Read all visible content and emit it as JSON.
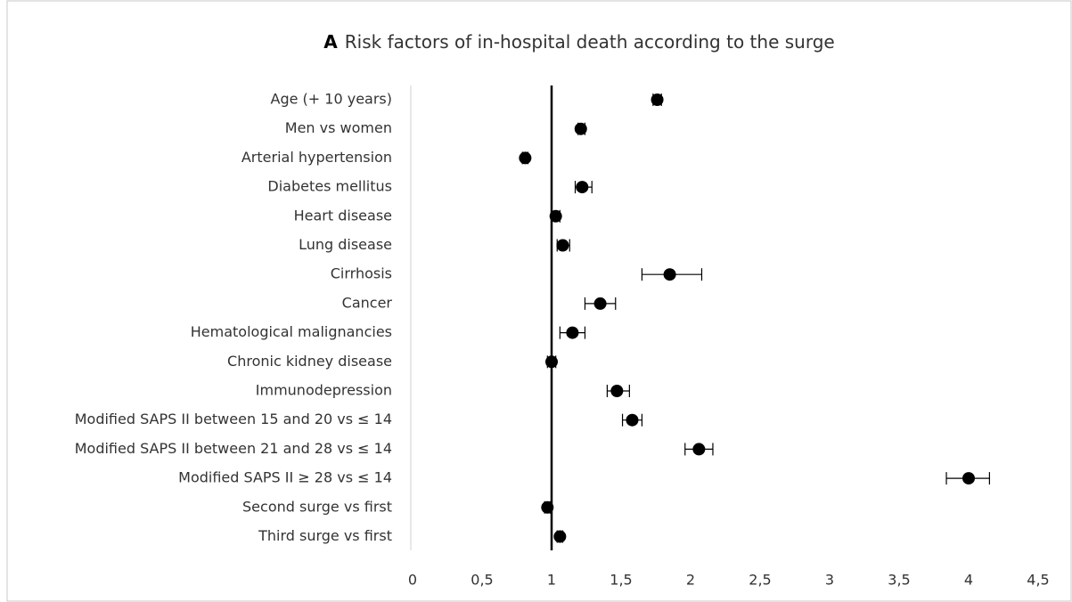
{
  "chart_data": {
    "type": "forest",
    "panel_label": "A",
    "title": "Risk factors of in-hospital death according to the surge",
    "categories": [
      "Age (+ 10 years)",
      "Men vs women",
      "Arterial hypertension",
      "Diabetes mellitus",
      "Heart disease",
      "Lung disease",
      "Cirrhosis",
      "Cancer",
      "Hematological malignancies",
      "Chronic kidney disease",
      "Immunodepression",
      "Modified SAPS II between 15 and 20 vs ≤ 14",
      "Modified SAPS II between 21 and 28 vs ≤ 14",
      "Modified SAPS II ≥ 28 vs ≤ 14",
      "Second surge vs first",
      "Third surge vs first"
    ],
    "values": [
      1.76,
      1.21,
      0.81,
      1.22,
      1.03,
      1.08,
      1.85,
      1.35,
      1.15,
      1.0,
      1.47,
      1.58,
      2.06,
      4.0,
      0.97,
      1.06
    ],
    "lower": [
      1.73,
      1.19,
      0.79,
      1.17,
      1.0,
      1.04,
      1.65,
      1.24,
      1.06,
      0.97,
      1.4,
      1.51,
      1.96,
      3.84,
      0.95,
      1.04
    ],
    "upper": [
      1.79,
      1.24,
      0.83,
      1.29,
      1.06,
      1.13,
      2.08,
      1.46,
      1.24,
      1.03,
      1.56,
      1.65,
      2.16,
      4.15,
      0.99,
      1.08
    ],
    "color": "#000000",
    "reference": 1,
    "xlim": [
      0,
      4.5
    ],
    "xticks": [
      0,
      {
        "value": 0.5,
        "label": "0,5"
      },
      1,
      {
        "value": 1.5,
        "label": "1,5"
      },
      2,
      {
        "value": 2.5,
        "label": "2,5"
      },
      3,
      {
        "value": 3.5,
        "label": "3,5"
      },
      4,
      {
        "value": 4.5,
        "label": "4,5"
      }
    ]
  }
}
